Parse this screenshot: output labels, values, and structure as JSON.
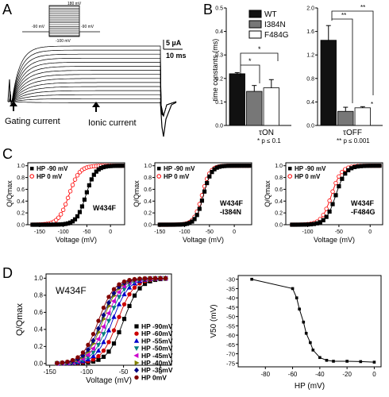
{
  "panels": {
    "A": "A",
    "B": "B",
    "C": "C",
    "D": "D"
  },
  "panel_A": {
    "protocol_top": "180 mV",
    "protocol_left": "-90 mV",
    "protocol_right": "-90 mV",
    "protocol_bottom": "-100 mV",
    "scale_current": "5 µA",
    "scale_time": "10 ms",
    "gating_label": "Gating current",
    "ionic_label": "Ionic current"
  },
  "panel_B": {
    "ylabel": "time constants (ms)",
    "legend": [
      "WT",
      "I384N",
      "F484G"
    ],
    "colors": {
      "WT": "#111111",
      "I384N": "#777777",
      "F484G": "#ffffff"
    },
    "star1": "*",
    "star2": "*",
    "star_off1": "**",
    "star_off2": "**",
    "star_off3": "*",
    "tau_on": "τON",
    "tau_off": "τOFF",
    "p1": "* p ≤ 0.1",
    "p2": "** p ≤ 0.001"
  },
  "panel_C": {
    "legend_hp90": "HP -90 mV",
    "legend_hp0": "HP   0 mV",
    "ylabel": "Q/Qmax",
    "xlabel": "Voltage (mV)",
    "titles": [
      "W434F",
      "W434F\n-I384N",
      "W434F\n-F484G"
    ],
    "title_lines": [
      [
        "W434F"
      ],
      [
        "W434F",
        "-I384N"
      ],
      [
        "W434F",
        "-F484G"
      ]
    ]
  },
  "panel_D": {
    "title": "W434F",
    "ylabel": "Q/Qmax",
    "xlabel": "Voltage (mV)",
    "legend": [
      {
        "label": "HP  -90mV",
        "color": "#000000"
      },
      {
        "label": "HP  -60mV",
        "color": "#cc0000"
      },
      {
        "label": "HP  -55mV",
        "color": "#0000cc"
      },
      {
        "label": "HP  -50mV",
        "color": "#008080"
      },
      {
        "label": "HP  -45mV",
        "color": "#cc00cc"
      },
      {
        "label": "HP  -40mV",
        "color": "#808000"
      },
      {
        "label": "HP  -35mV",
        "color": "#000080"
      },
      {
        "label": "HP     0mV",
        "color": "#800000"
      }
    ],
    "right_ylabel": "V50 (mV)",
    "right_xlabel": "HP (mV)"
  },
  "chart_data": [
    {
      "type": "bar",
      "panel": "B-left",
      "categories": [
        "τON"
      ],
      "series": [
        {
          "name": "WT",
          "values": [
            0.22
          ],
          "err": [
            0.005
          ]
        },
        {
          "name": "I384N",
          "values": [
            0.145
          ],
          "err": [
            0.025
          ]
        },
        {
          "name": "F484G",
          "values": [
            0.16
          ],
          "err": [
            0.035
          ]
        }
      ],
      "ylim": [
        0,
        0.5
      ],
      "yticks": [
        "0.0",
        "0.1",
        "0.2",
        "0.3",
        "0.4",
        "0.5"
      ],
      "ylabel": "time constants (ms)"
    },
    {
      "type": "bar",
      "panel": "B-right",
      "categories": [
        "τOFF"
      ],
      "series": [
        {
          "name": "WT",
          "values": [
            1.45
          ],
          "err": [
            0.25
          ]
        },
        {
          "name": "I384N",
          "values": [
            0.24
          ],
          "err": [
            0.07
          ]
        },
        {
          "name": "F484G",
          "values": [
            0.3
          ],
          "err": [
            0.02
          ]
        }
      ],
      "ylim": [
        0,
        2.0
      ],
      "yticks": [
        "0.0",
        "0.4",
        "0.8",
        "1.2",
        "1.6",
        "2.0"
      ]
    },
    {
      "type": "scatter",
      "panel": "C1",
      "title": "W434F",
      "xlabel": "Voltage (mV)",
      "ylabel": "Q/Qmax",
      "xlim": [
        -175,
        30
      ],
      "ylim": [
        0,
        1.05
      ],
      "xticks": [
        -150,
        -100,
        -50,
        0
      ],
      "yticks": [
        0.0,
        0.2,
        0.4,
        0.6,
        0.8,
        1.0
      ],
      "series": [
        {
          "name": "HP -90 mV",
          "v50": -52,
          "k": 10
        },
        {
          "name": "HP   0 mV",
          "v50": -88,
          "k": 11
        }
      ]
    },
    {
      "type": "scatter",
      "panel": "C2",
      "title": "W434F -I384N",
      "xlabel": "Voltage (mV)",
      "ylabel": "Q/Qmax",
      "xlim": [
        -160,
        35
      ],
      "ylim": [
        0,
        1.05
      ],
      "xticks": [
        -150,
        -100,
        -50,
        0
      ],
      "yticks": [
        0.0,
        0.2,
        0.4,
        0.6,
        0.8,
        1.0
      ],
      "series": [
        {
          "name": "HP -90 mV",
          "v50": -62,
          "k": 8
        },
        {
          "name": "HP   0 mV",
          "v50": -65,
          "k": 8
        }
      ]
    },
    {
      "type": "scatter",
      "panel": "C3",
      "title": "W434F -F484G",
      "xlabel": "Voltage (mV)",
      "ylabel": "Q/Qmax",
      "xlim": [
        -135,
        20
      ],
      "ylim": [
        0,
        1.05
      ],
      "xticks": [
        -100,
        -50,
        0
      ],
      "yticks": [
        0.0,
        0.2,
        0.4,
        0.6,
        0.8,
        1.0
      ],
      "series": [
        {
          "name": "HP -90 mV",
          "v50": -55,
          "k": 8
        },
        {
          "name": "HP   0 mV",
          "v50": -62,
          "k": 8
        }
      ]
    },
    {
      "type": "scatter",
      "panel": "D-left",
      "title": "W434F",
      "xlabel": "Voltage (mV)",
      "ylabel": "Q/Qmax",
      "xlim": [
        -155,
        15
      ],
      "ylim": [
        -0.02,
        1.05
      ],
      "xticks": [
        -150,
        -100,
        -50,
        0
      ],
      "yticks": [
        0.0,
        0.2,
        0.4,
        0.6,
        0.8,
        1.0
      ],
      "series": [
        {
          "name": "HP  -90mV",
          "v50": -50,
          "k": 11
        },
        {
          "name": "HP  -60mV",
          "v50": -58,
          "k": 11
        },
        {
          "name": "HP  -55mV",
          "v50": -65,
          "k": 11
        },
        {
          "name": "HP  -50mV",
          "v50": -70,
          "k": 11
        },
        {
          "name": "HP  -45mV",
          "v50": -74,
          "k": 11
        },
        {
          "name": "HP  -40mV",
          "v50": -78,
          "k": 11
        },
        {
          "name": "HP  -35mV",
          "v50": -80,
          "k": 11
        },
        {
          "name": "HP     0mV",
          "v50": -84,
          "k": 11
        }
      ]
    },
    {
      "type": "line",
      "panel": "D-right",
      "xlabel": "HP (mV)",
      "ylabel": "V50 (mV)",
      "xlim": [
        -100,
        5
      ],
      "ylim": [
        -77,
        -28
      ],
      "xticks": [
        -80,
        -60,
        -40,
        -20,
        0
      ],
      "yticks": [
        -30,
        -35,
        -40,
        -45,
        -50,
        -55,
        -60,
        -65,
        -70,
        -75
      ],
      "x": [
        -90,
        -60,
        -57,
        -55,
        -52,
        -50,
        -47,
        -45,
        -40,
        -35,
        -30,
        -20,
        -10,
        0
      ],
      "y": [
        -30,
        -35,
        -40,
        -46,
        -53,
        -59,
        -64,
        -68,
        -72,
        -73.5,
        -74,
        -74,
        -74.2,
        -74.5
      ]
    }
  ]
}
